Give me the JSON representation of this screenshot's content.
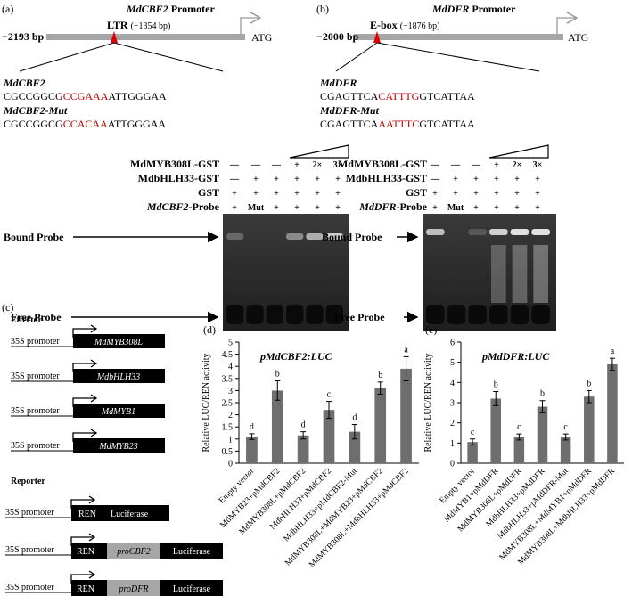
{
  "panel_a": {
    "label": "(a)",
    "gene": "MdCBF2",
    "promoter": "Promoter",
    "start": "−2193 bp",
    "element": "LTR",
    "element_pos": "(−1354 bp)",
    "end": "ATG",
    "seq_label": "MdCBF2",
    "seq": [
      "CGCCGGCG",
      "CCGAAA",
      "ATTGGGAA"
    ],
    "mut_label": "MdCBF2-Mut",
    "mut_seq": [
      "CGCCGGCG",
      "CCACAA",
      "ATTGGGAA"
    ],
    "emsa_rows": [
      {
        "name": "MdMYB308L-GST",
        "lanes": [
          "—",
          "—",
          "—",
          "+",
          "2×",
          "3×"
        ]
      },
      {
        "name": "MdbHLH33-GST",
        "lanes": [
          "—",
          "+",
          "+",
          "+",
          "+",
          "+"
        ]
      },
      {
        "name": "GST",
        "lanes": [
          "+",
          "+",
          "+",
          "+",
          "+",
          "+"
        ]
      },
      {
        "name": "MdCBF2",
        "suffix": "-Probe",
        "lanes": [
          "+",
          "Mut",
          "+",
          "+",
          "+",
          "+"
        ]
      }
    ],
    "bound": "Bound Probe",
    "free": "Free Probe"
  },
  "panel_b": {
    "label": "(b)",
    "gene": "MdDFR",
    "promoter": "Promoter",
    "start": "−2000 bp",
    "element": "E-box",
    "element_pos": "(−1876 bp)",
    "end": "ATG",
    "seq_label": "MdDFR",
    "seq": [
      "CGAGTTCA",
      "CATTTG",
      "GTCATTAA"
    ],
    "mut_label": "MdDFR-Mut",
    "mut_seq": [
      "CGAGTTCA",
      "AATTTC",
      "GTCATTAA"
    ],
    "emsa_rows": [
      {
        "name": "MdMYB308L-GST",
        "lanes": [
          "—",
          "—",
          "—",
          "+",
          "2×",
          "3×"
        ]
      },
      {
        "name": "MdbHLH33-GST",
        "lanes": [
          "—",
          "+",
          "+",
          "+",
          "+",
          "+"
        ]
      },
      {
        "name": "GST",
        "lanes": [
          "+",
          "+",
          "+",
          "+",
          "+",
          "+"
        ]
      },
      {
        "name": "MdDFR",
        "suffix": "-Probe",
        "lanes": [
          "+",
          "Mut",
          "+",
          "+",
          "+",
          "+"
        ]
      }
    ],
    "bound": "Bound Probe",
    "free": "Free Probe"
  },
  "panel_c": {
    "label": "(c)",
    "effector": "Effector",
    "reporter": "Reporter",
    "promoter": "35S promoter",
    "effectors": [
      "MdMYB308L",
      "MdbHLH33",
      "MdMYB1",
      "MdMYB23"
    ],
    "ren": "REN",
    "luc": "Luciferase",
    "pro": [
      "proCBF2",
      "proDFR"
    ]
  },
  "chart_data": [
    {
      "type": "bar",
      "panel": "(d)",
      "title": "pMdCBF2:LUC",
      "y_label": "Relative LUC/REN activity",
      "color": "#6e6e6e",
      "categories": [
        "Empty vector",
        "MdMYB23+pMdCBF2",
        "MdMYB308L+pMdCBF2",
        "MdbHLH33+pMdCBF2",
        "MdbHLH33+pMdCBF2-Mut",
        "MdMYB308L+MdMYB23+pMdCBF2",
        "MdMYB308L+MdbHLH33+pMdCBF2"
      ],
      "values": [
        1.1,
        3.0,
        1.15,
        2.2,
        1.3,
        3.1,
        3.9
      ],
      "errors": [
        0.12,
        0.4,
        0.15,
        0.35,
        0.3,
        0.25,
        0.5
      ],
      "letters": [
        "d",
        "b",
        "d",
        "c",
        "d",
        "b",
        "a"
      ],
      "ylim": [
        0,
        5
      ],
      "yticks": [
        0,
        0.5,
        1,
        1.5,
        2,
        2.5,
        3,
        3.5,
        4,
        4.5,
        5
      ]
    },
    {
      "type": "bar",
      "panel": "(e)",
      "title": "pMdDFR:LUC",
      "y_label": "Relative LUC/REN activity",
      "color": "#6e6e6e",
      "categories": [
        "Empty vector",
        "MdMYB1+pMdDFR",
        "MdMYB308L+pMdDFR",
        "MdbHLH33+pMdDFR",
        "MdbHLH33+pMdDFR-Mut",
        "MdMYB308L+MdMYB1+pMdDFR",
        "MdMYB308L+MdbHLH33+pMdDFR"
      ],
      "values": [
        1.05,
        3.2,
        1.3,
        2.8,
        1.3,
        3.3,
        4.9
      ],
      "errors": [
        0.15,
        0.35,
        0.15,
        0.3,
        0.15,
        0.3,
        0.3
      ],
      "letters": [
        "c",
        "b",
        "c",
        "b",
        "c",
        "b",
        "a"
      ],
      "ylim": [
        0,
        6
      ],
      "yticks": [
        0,
        1,
        2,
        3,
        4,
        5,
        6
      ]
    }
  ]
}
